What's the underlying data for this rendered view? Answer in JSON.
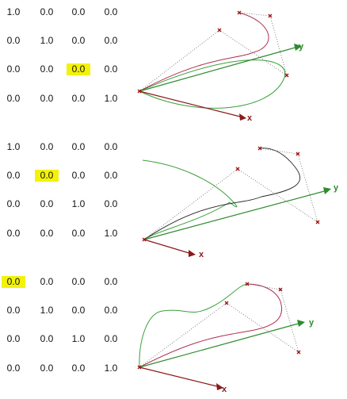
{
  "panels": [
    {
      "matrix": [
        [
          "1.0",
          "0.0",
          "0.0",
          "0.0"
        ],
        [
          "0.0",
          "1.0",
          "0.0",
          "0.0"
        ],
        [
          "0.0",
          "0.0",
          "0.0",
          "0.0"
        ],
        [
          "0.0",
          "0.0",
          "0.0",
          "1.0"
        ]
      ],
      "highlight": [
        2,
        2
      ],
      "x_label": "x",
      "y_label": "y"
    },
    {
      "matrix": [
        [
          "1.0",
          "0.0",
          "0.0",
          "0.0"
        ],
        [
          "0.0",
          "0.0",
          "0.0",
          "0.0"
        ],
        [
          "0.0",
          "0.0",
          "1.0",
          "0.0"
        ],
        [
          "0.0",
          "0.0",
          "0.0",
          "1.0"
        ]
      ],
      "highlight": [
        1,
        1
      ],
      "x_label": "x",
      "y_label": "y"
    },
    {
      "matrix": [
        [
          "0.0",
          "0.0",
          "0.0",
          "0.0"
        ],
        [
          "0.0",
          "1.0",
          "0.0",
          "0.0"
        ],
        [
          "0.0",
          "0.0",
          "1.0",
          "0.0"
        ],
        [
          "0.0",
          "0.0",
          "0.0",
          "1.0"
        ]
      ],
      "highlight": [
        0,
        0
      ],
      "x_label": "x",
      "y_label": "y"
    }
  ],
  "colors": {
    "x_axis": "#8b1a1a",
    "y_axis": "#2e8b2e",
    "curve_3d": "#b03050",
    "curve_proj": "#3aa03a",
    "control_point": "#a01010",
    "hull": "#666666",
    "highlight": "#f2f20a"
  }
}
